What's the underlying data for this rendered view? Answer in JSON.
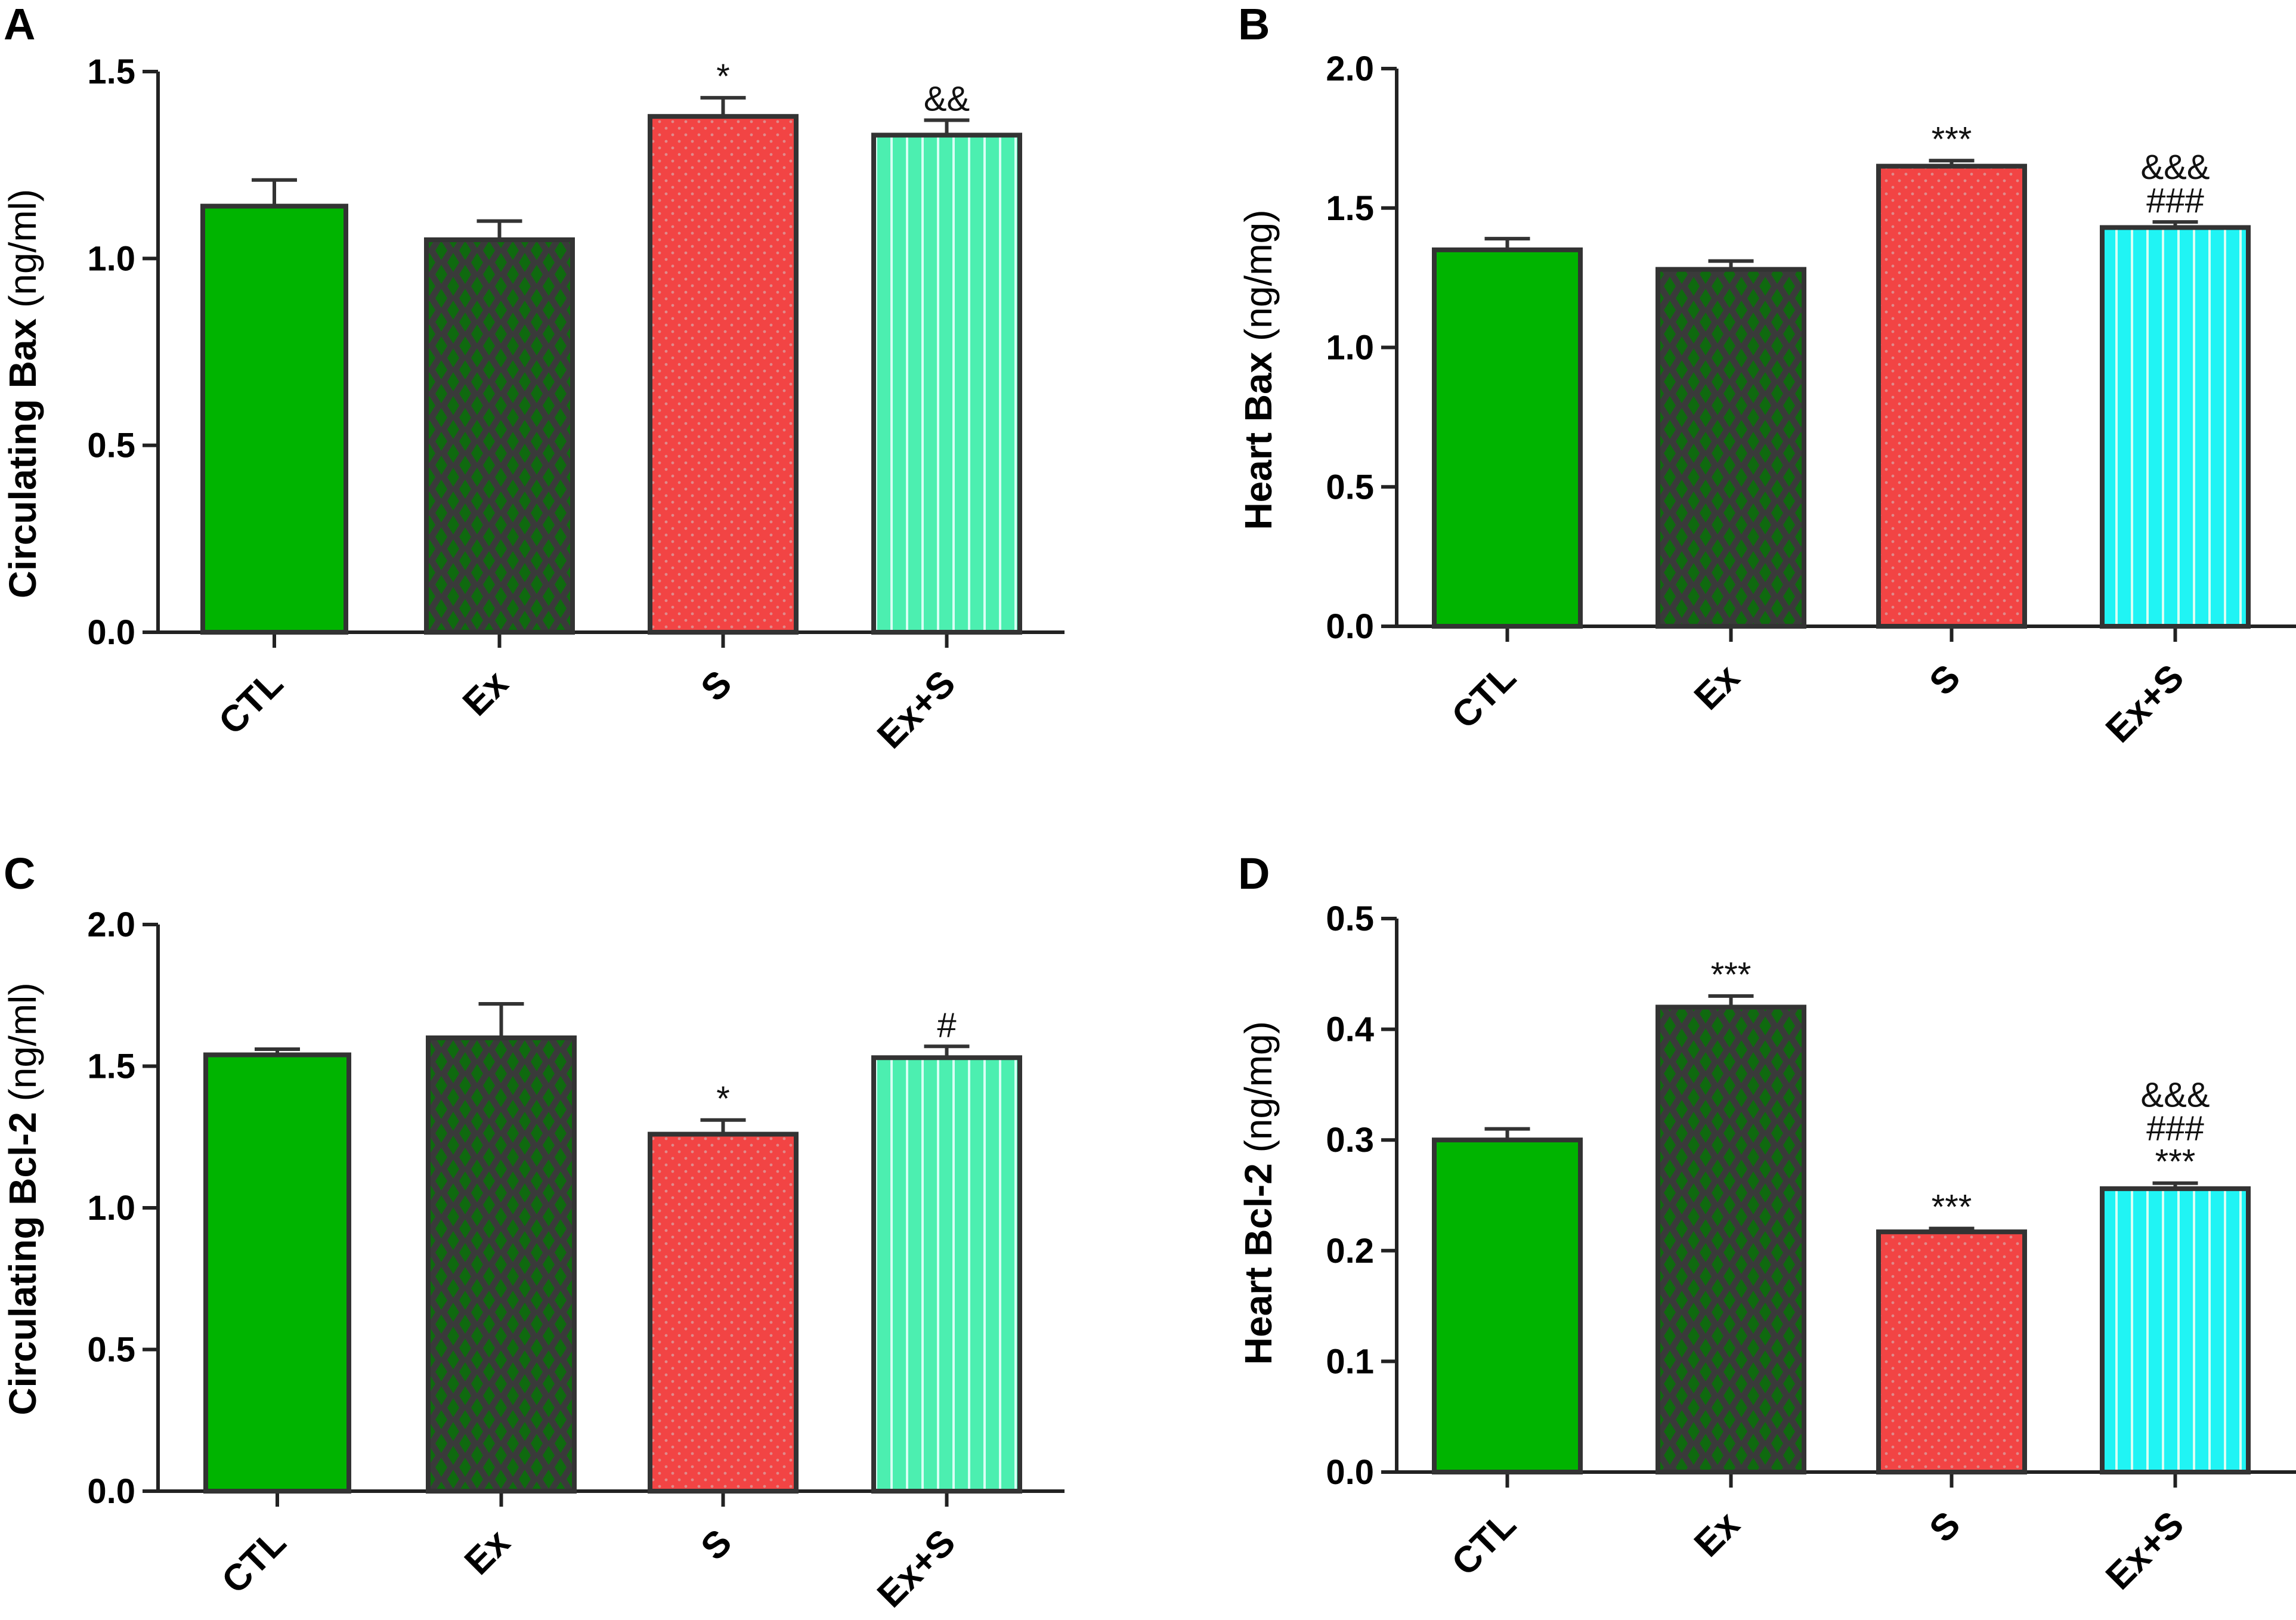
{
  "chart_data": [
    {
      "panel": "A",
      "type": "bar",
      "categories": [
        "CTL",
        "Ex",
        "S",
        "Ex+S"
      ],
      "values": [
        1.14,
        1.05,
        1.38,
        1.33
      ],
      "errors": [
        0.07,
        0.05,
        0.05,
        0.04
      ],
      "annotations": [
        [],
        [],
        [
          "*"
        ],
        [
          "&&"
        ]
      ],
      "ylabel_main": "Circulating Bax",
      "ylabel_unit": "(ng/ml)",
      "ylim": [
        0,
        1.5
      ],
      "yticks": [
        "0.0",
        "0.5",
        "1.0",
        "1.5"
      ],
      "ytick_values": [
        0,
        0.5,
        1.0,
        1.5
      ],
      "fills": [
        "solid-green",
        "dark-diamond",
        "red-dot",
        "mint-stripe"
      ]
    },
    {
      "panel": "B",
      "type": "bar",
      "categories": [
        "CTL",
        "Ex",
        "S",
        "Ex+S"
      ],
      "values": [
        1.35,
        1.28,
        1.65,
        1.43
      ],
      "errors": [
        0.04,
        0.03,
        0.02,
        0.02
      ],
      "annotations": [
        [],
        [],
        [
          "***"
        ],
        [
          "###",
          "&&&"
        ]
      ],
      "ylabel_main": "Heart Bax",
      "ylabel_unit": "(ng/mg)",
      "ylim": [
        0,
        2.0
      ],
      "yticks": [
        "0.0",
        "0.5",
        "1.0",
        "1.5",
        "2.0"
      ],
      "ytick_values": [
        0,
        0.5,
        1.0,
        1.5,
        2.0
      ],
      "fills": [
        "solid-green",
        "dark-diamond",
        "red-dot",
        "cyan-stripe"
      ]
    },
    {
      "panel": "C",
      "type": "bar",
      "categories": [
        "CTL",
        "Ex",
        "S",
        "Ex+S"
      ],
      "values": [
        1.54,
        1.6,
        1.26,
        1.53
      ],
      "errors": [
        0.02,
        0.12,
        0.05,
        0.04
      ],
      "annotations": [
        [],
        [],
        [
          "*"
        ],
        [
          "#"
        ]
      ],
      "ylabel_main": "Circulating Bcl-2",
      "ylabel_unit": "(ng/ml)",
      "ylim": [
        0,
        2.0
      ],
      "yticks": [
        "0.0",
        "0.5",
        "1.0",
        "1.5",
        "2.0"
      ],
      "ytick_values": [
        0,
        0.5,
        1.0,
        1.5,
        2.0
      ],
      "fills": [
        "solid-green",
        "dark-diamond",
        "red-dot",
        "mint-stripe"
      ]
    },
    {
      "panel": "D",
      "type": "bar",
      "categories": [
        "CTL",
        "Ex",
        "S",
        "Ex+S"
      ],
      "values": [
        0.3,
        0.42,
        0.217,
        0.256
      ],
      "errors": [
        0.01,
        0.01,
        0.003,
        0.005
      ],
      "annotations": [
        [],
        [
          "***"
        ],
        [
          "***"
        ],
        [
          "***",
          "###",
          "&&&"
        ]
      ],
      "ylabel_main": "Heart Bcl-2",
      "ylabel_unit": "(ng/mg)",
      "ylim": [
        0,
        0.5
      ],
      "yticks": [
        "0.0",
        "0.1",
        "0.2",
        "0.3",
        "0.4",
        "0.5"
      ],
      "ytick_values": [
        0,
        0.1,
        0.2,
        0.3,
        0.4,
        0.5
      ],
      "fills": [
        "solid-green",
        "dark-diamond",
        "red-dot",
        "cyan-stripe"
      ]
    }
  ],
  "colors": {
    "green": "#00b400",
    "dark": "#3a3a3a",
    "dark_dot": "#0f6a0f",
    "red": "#f24444",
    "red_dot": "#e08a8a",
    "mint": "#4cefb0",
    "cyan": "#20f4f4",
    "stripe": "#d8fff4",
    "outline": "#333333"
  }
}
